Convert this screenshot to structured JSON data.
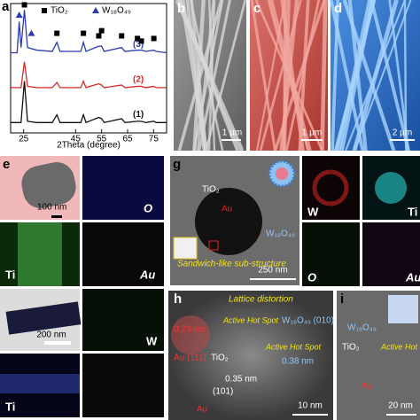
{
  "chart_data": {
    "type": "line",
    "panel": "a",
    "xlabel": "2Theta (degree)",
    "x": [
      20,
      22.5,
      23.3,
      24,
      25.3,
      26.5,
      30,
      36,
      37.8,
      39,
      47,
      48,
      49,
      53.9,
      55,
      56,
      62.7,
      64,
      68.8,
      70.3,
      72,
      75.1,
      76,
      80
    ],
    "series": [
      {
        "name": "(1)",
        "color": "#111111",
        "values": [
          8,
          8,
          8,
          8,
          40,
          9,
          8,
          8,
          14,
          8,
          8,
          14,
          8,
          12,
          11,
          8,
          11,
          8,
          9,
          9,
          8,
          9,
          8,
          8
        ]
      },
      {
        "name": "(2)",
        "color": "#d42a2a",
        "values": [
          35,
          35,
          35,
          35,
          55,
          36,
          35,
          35,
          39,
          35,
          35,
          40,
          35,
          38,
          37,
          35,
          37,
          35,
          36,
          36,
          35,
          36,
          35,
          35
        ]
      },
      {
        "name": "(3)",
        "color": "#2b3ab0",
        "values": [
          62,
          62,
          86,
          66,
          95,
          66,
          64,
          63,
          70,
          63,
          63,
          70,
          63,
          67,
          67,
          63,
          66,
          63,
          64,
          64,
          63,
          64,
          63,
          62
        ]
      }
    ],
    "legend": [
      {
        "name": "TiO₂",
        "symbol": "square"
      },
      {
        "name": "W₁₈O₄₉",
        "symbol": "triangle"
      }
    ],
    "peak_markers": [
      {
        "x": 23.3,
        "y": 91,
        "symbol": "triangle"
      },
      {
        "x": 25.3,
        "y": 99,
        "symbol": "square"
      },
      {
        "x": 28,
        "y": 77,
        "symbol": "triangle"
      },
      {
        "x": 37.8,
        "y": 77,
        "symbol": "square"
      },
      {
        "x": 48,
        "y": 77,
        "symbol": "square"
      },
      {
        "x": 53.9,
        "y": 75,
        "symbol": "square"
      },
      {
        "x": 55,
        "y": 79,
        "symbol": "square"
      },
      {
        "x": 62.7,
        "y": 75,
        "symbol": "square"
      },
      {
        "x": 68.8,
        "y": 73,
        "symbol": "square"
      },
      {
        "x": 70.3,
        "y": 71,
        "symbol": "square"
      },
      {
        "x": 75.1,
        "y": 73,
        "symbol": "square"
      }
    ],
    "xlim": [
      20,
      80
    ],
    "xticks": [
      25,
      45,
      55,
      65,
      75
    ],
    "ylim": [
      0,
      100
    ]
  },
  "panels": {
    "b": {
      "letter": "b",
      "scale": "1 µm"
    },
    "c": {
      "letter": "c",
      "scale": "1 µm"
    },
    "d": {
      "letter": "d",
      "scale": "2 µm"
    },
    "e": {
      "letter": "e",
      "scale": "100 nm",
      "maps": [
        "O",
        "Ti",
        "Au"
      ]
    },
    "g": {
      "letter": "g",
      "tio2": "TiO₂",
      "au": "Au",
      "w18o49": "W₁₈O₄₉",
      "inset": "Sandwich-like sub-structure",
      "scale": "250 nm",
      "maps": [
        "W",
        "Ti",
        "O",
        "Au"
      ]
    },
    "f": {
      "scale": "200 nm",
      "maps": [
        "W",
        "Ti"
      ]
    },
    "h": {
      "letter": "h",
      "title": "Lattice distortion",
      "d1": "0.23 nm",
      "au111": "Au (111)",
      "hot1": "Active Hot Spot",
      "hot2": "Active Hot Spot",
      "w_plane": "W₁₈O₄₉ (010)",
      "d2": "0.38 nm",
      "tio2": "TiO₂",
      "d3": "0.35 nm",
      "plane101": "(101)",
      "au": "Au",
      "scale": "10 nm"
    },
    "i": {
      "letter": "i",
      "w18o49": "W₁₈O₄₉",
      "tio2": "TiO₂",
      "hot": "Active Hot Spot",
      "au": "Au",
      "scale": "20 nm"
    }
  }
}
